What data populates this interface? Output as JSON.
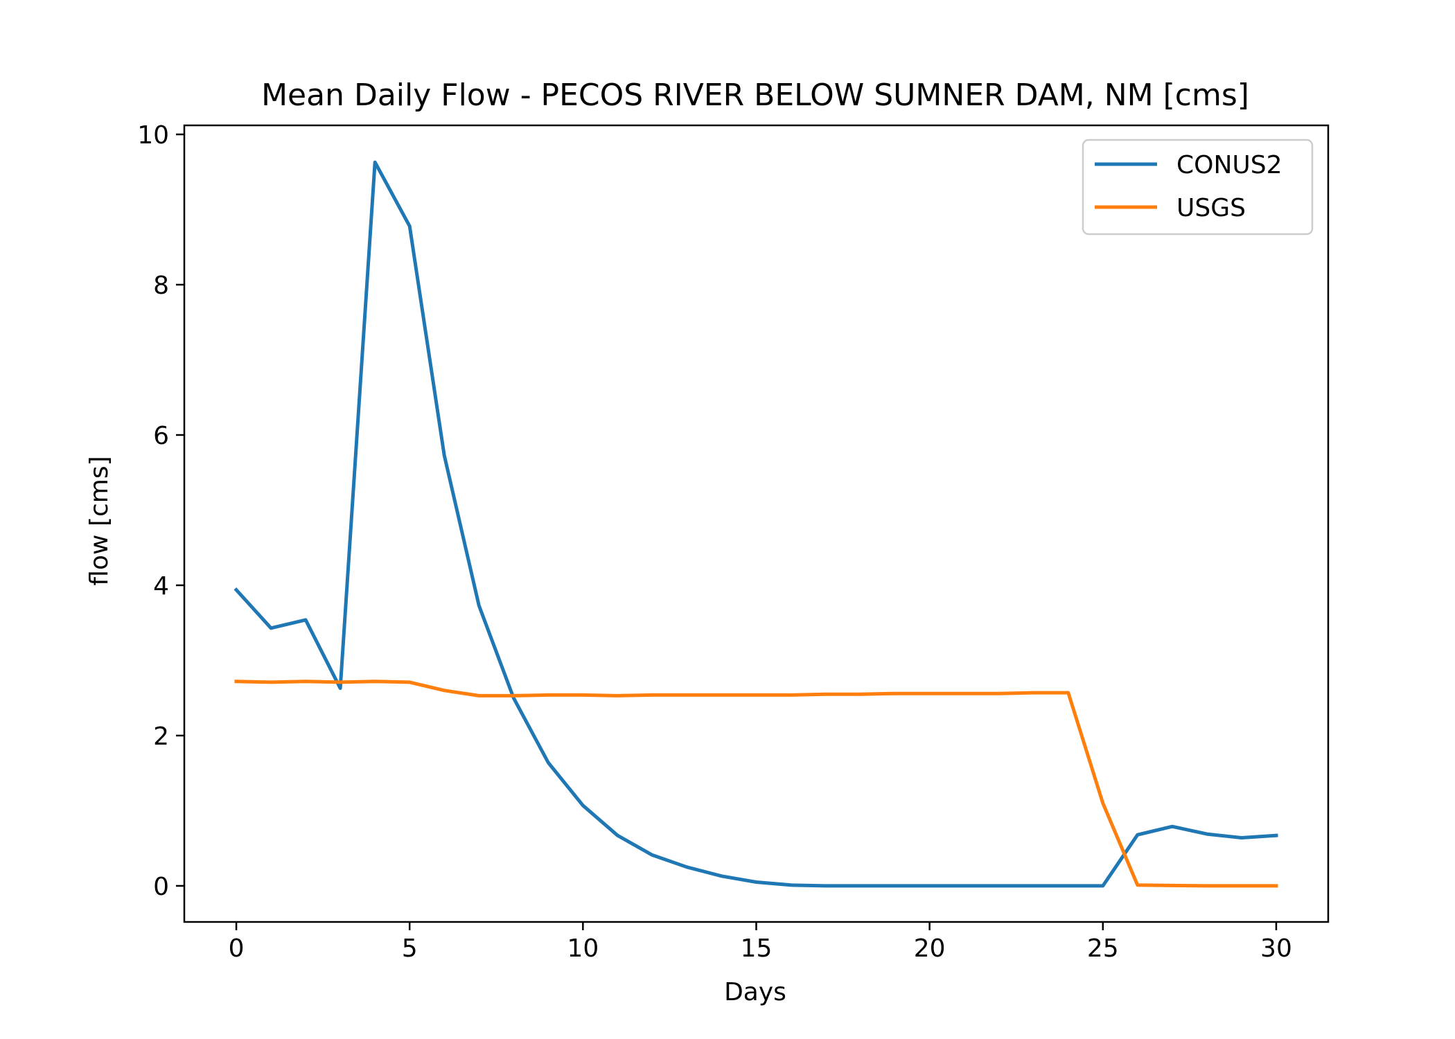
{
  "chart_data": {
    "type": "line",
    "title": "Mean Daily Flow - PECOS RIVER BELOW SUMNER DAM, NM [cms]",
    "xlabel": "Days",
    "ylabel": "flow [cms]",
    "xlim": [
      -1.5,
      31.5
    ],
    "ylim": [
      -0.48,
      10.12
    ],
    "xticks": [
      0,
      5,
      10,
      15,
      20,
      25,
      30
    ],
    "yticks": [
      0,
      2,
      4,
      6,
      8,
      10
    ],
    "grid": false,
    "legend_position": "top-right",
    "x": [
      0,
      1,
      2,
      3,
      4,
      5,
      6,
      7,
      8,
      9,
      10,
      11,
      12,
      13,
      14,
      15,
      16,
      17,
      18,
      19,
      20,
      21,
      22,
      23,
      24,
      25,
      26,
      27,
      28,
      29,
      30
    ],
    "series": [
      {
        "name": "CONUS2",
        "color": "#1f77b4",
        "values": [
          3.94,
          3.43,
          3.54,
          2.63,
          9.63,
          8.78,
          5.73,
          3.73,
          2.5,
          1.64,
          1.07,
          0.67,
          0.41,
          0.25,
          0.13,
          0.05,
          0.01,
          0.0,
          0.0,
          0.0,
          0.0,
          0.0,
          0.0,
          0.0,
          0.0,
          0.0,
          0.68,
          0.79,
          0.69,
          0.64,
          0.67
        ]
      },
      {
        "name": "USGS",
        "color": "#ff7f0e",
        "values": [
          2.72,
          2.71,
          2.72,
          2.71,
          2.72,
          2.71,
          2.6,
          2.53,
          2.53,
          2.54,
          2.54,
          2.53,
          2.54,
          2.54,
          2.54,
          2.54,
          2.54,
          2.55,
          2.55,
          2.56,
          2.56,
          2.56,
          2.56,
          2.57,
          2.57,
          1.1,
          0.01,
          0.005,
          0.0,
          0.0,
          0.0
        ]
      }
    ]
  }
}
